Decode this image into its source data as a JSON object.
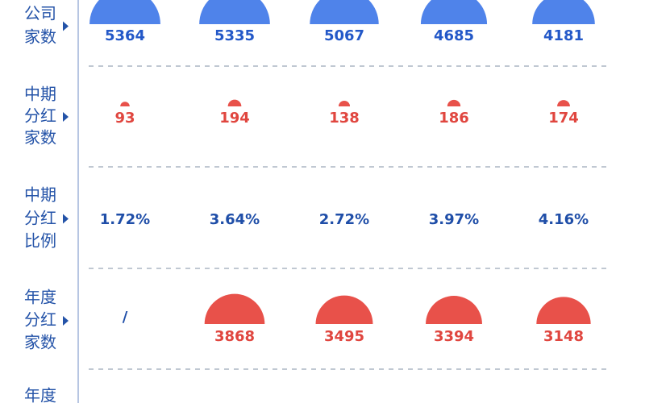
{
  "rows": [
    {
      "label": [
        "公司",
        "家数"
      ],
      "color": "#2358c8",
      "shape": "#4f83ea",
      "cells": [
        5364,
        5335,
        5067,
        4685,
        4181
      ]
    },
    {
      "label": [
        "中期",
        "分红",
        "家数"
      ],
      "color": "#e0463f",
      "shape": "#e8514a",
      "cells": [
        93,
        194,
        138,
        186,
        174
      ]
    },
    {
      "label": [
        "中期",
        "分红",
        "比例"
      ],
      "color": "#1f4ea8",
      "cells": [
        {
          "value": 1.72,
          "label": "1.72%"
        },
        {
          "value": 3.64,
          "label": "3.64%"
        },
        {
          "value": 2.72,
          "label": "2.72%"
        },
        {
          "value": 3.97,
          "label": "3.97%"
        },
        {
          "value": 4.16,
          "label": "4.16%"
        }
      ]
    },
    {
      "label": [
        "年度",
        "分红",
        "家数"
      ],
      "color": "#e0463f",
      "shape": "#e8514a",
      "cells": [
        "/",
        3868,
        3495,
        3394,
        3148
      ]
    },
    {
      "label": [
        "年度"
      ],
      "cells": []
    }
  ]
}
